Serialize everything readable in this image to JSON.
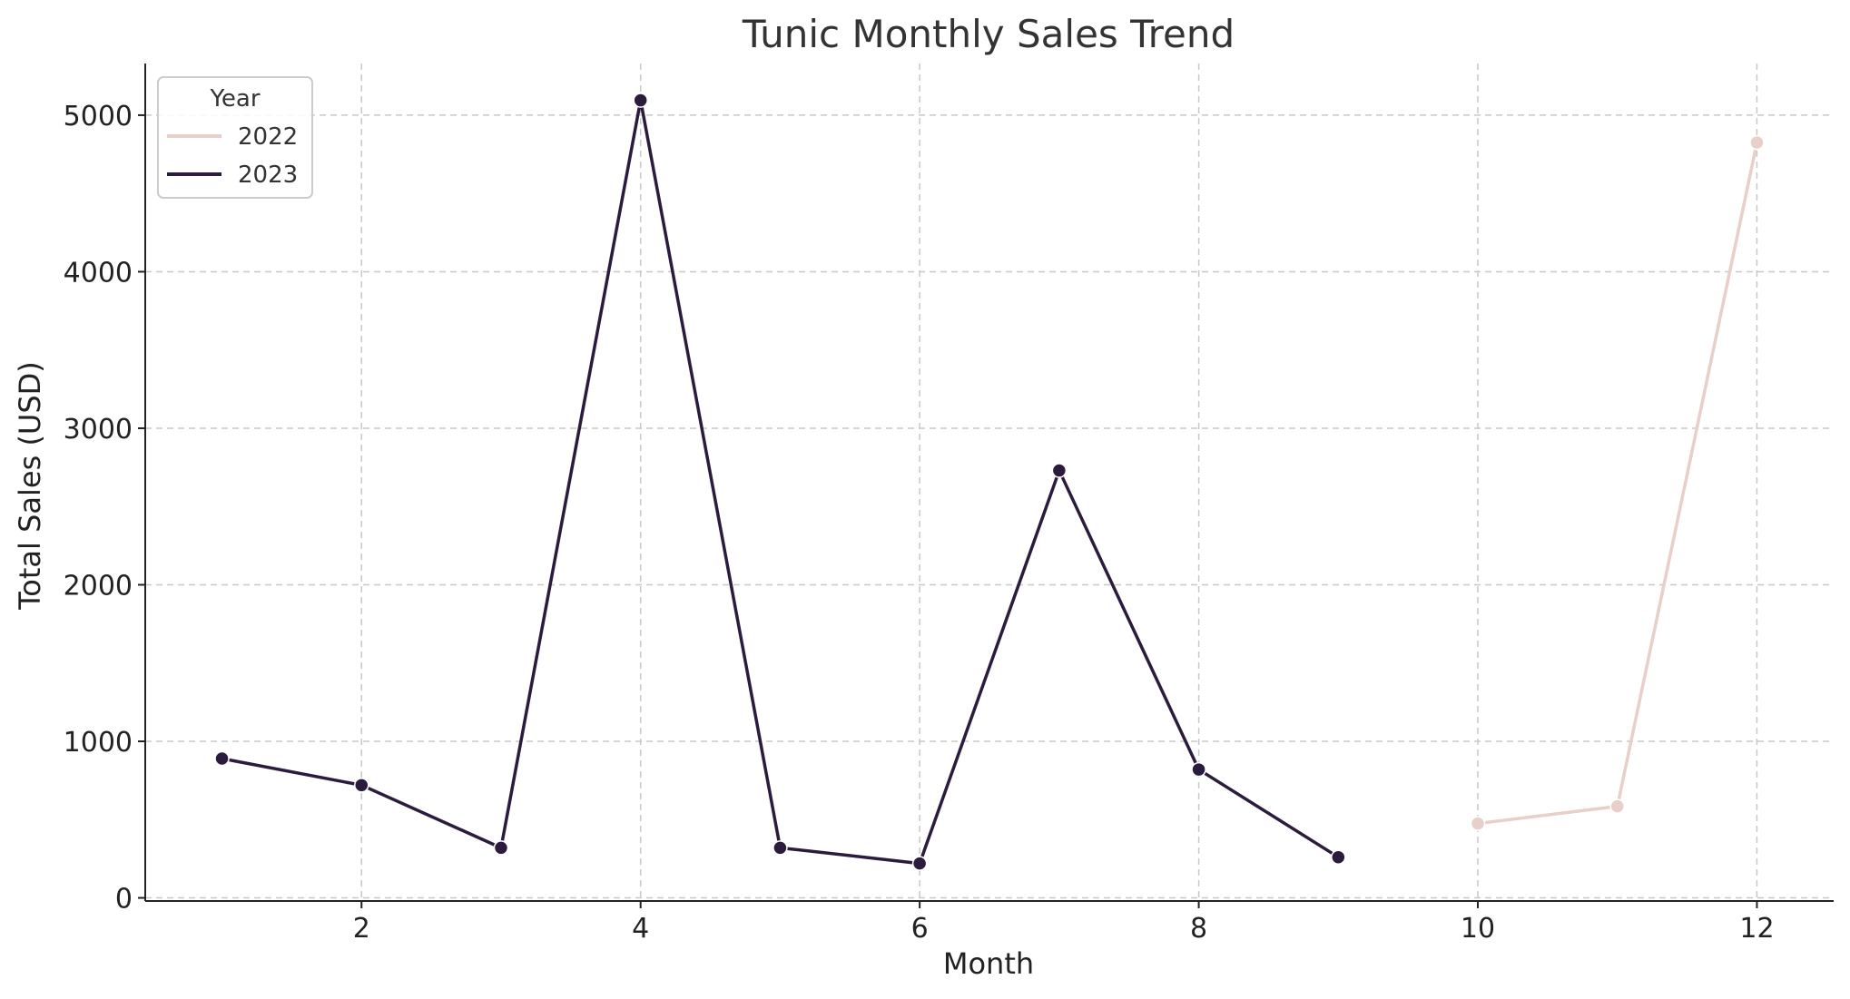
{
  "chart_data": {
    "type": "line",
    "title": "Tunic Monthly Sales Trend",
    "xlabel": "Month",
    "ylabel": "Total Sales (USD)",
    "xlim": [
      0.45,
      12.55
    ],
    "ylim": [
      -20,
      5330
    ],
    "xticks": [
      2,
      4,
      6,
      8,
      10,
      12
    ],
    "yticks": [
      0,
      1000,
      2000,
      3000,
      4000,
      5000
    ],
    "grid": true,
    "legend": {
      "title": "Year",
      "position": "top-left"
    },
    "series": [
      {
        "name": "2022",
        "color": "#e8cfc9",
        "x": [
          10,
          11,
          12
        ],
        "y": [
          475,
          585,
          4825
        ]
      },
      {
        "name": "2023",
        "color": "#2b1b3d",
        "x": [
          1,
          2,
          3,
          4,
          5,
          6,
          7,
          8,
          9
        ],
        "y": [
          890,
          720,
          320,
          5095,
          320,
          220,
          2730,
          820,
          260
        ]
      }
    ]
  }
}
